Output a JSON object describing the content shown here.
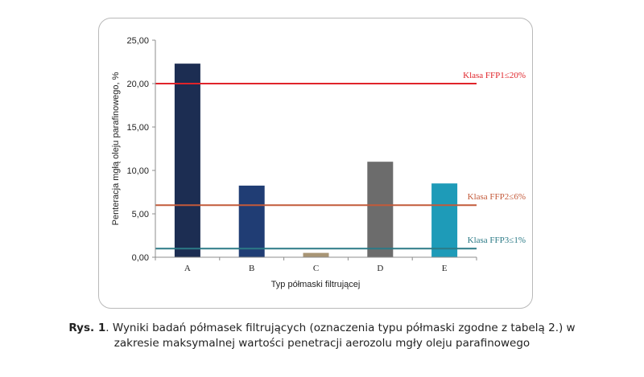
{
  "chart_data": {
    "type": "bar",
    "categories": [
      "A",
      "B",
      "C",
      "D",
      "E"
    ],
    "values": [
      22.3,
      8.25,
      0.5,
      11.0,
      8.5
    ],
    "bar_colors": [
      "#1c2d52",
      "#203d74",
      "#a89575",
      "#6c6c6c",
      "#1e9bb8"
    ],
    "xlabel": "Typ półmaski filtrującej",
    "ylabel": "Penteracja mgłą oleju parafinowego, %",
    "ylim": [
      0,
      25
    ],
    "yticks": [
      "0,00",
      "5,00",
      "10,00",
      "15,00",
      "20,00",
      "25,00"
    ],
    "thresholds": [
      {
        "label": "Klasa FFP1≤20%",
        "value": 20,
        "color": "#e0242a"
      },
      {
        "label": "Klasa FFP2≤6%",
        "value": 6,
        "color": "#c35a3a"
      },
      {
        "label": "Klasa FFP3≤1%",
        "value": 1,
        "color": "#2b7a86"
      }
    ],
    "grid": false
  },
  "caption": {
    "label": "Rys. 1",
    "line1": ". Wyniki badań półmasek filtrujących (oznaczenia typu półmaski zgodne z tabelą 2.) w",
    "line2": "zakresie maksymalnej wartości penetracji aerozolu mgły oleju parafinowego"
  }
}
